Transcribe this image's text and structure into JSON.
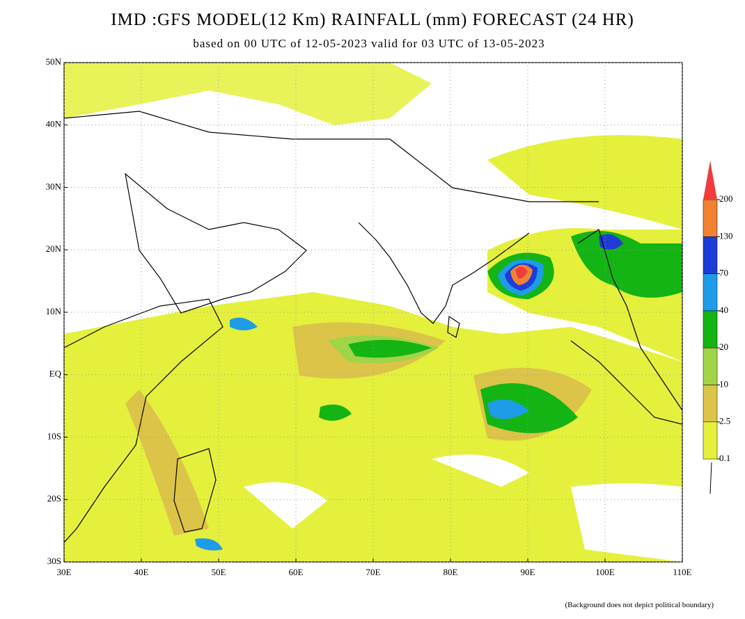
{
  "header": {
    "title": "IMD :GFS MODEL(12 Km) RAINFALL (mm) FORECAST (24 HR)",
    "subtitle": "based on 00 UTC of 12-05-2023 valid for 03 UTC of 13-05-2023"
  },
  "map": {
    "lonlim": [
      30,
      110
    ],
    "latlim": [
      -30,
      50
    ],
    "lon_ticks": [
      {
        "value": 30,
        "label": "30E"
      },
      {
        "value": 40,
        "label": "40E"
      },
      {
        "value": 50,
        "label": "50E"
      },
      {
        "value": 60,
        "label": "60E"
      },
      {
        "value": 70,
        "label": "70E"
      },
      {
        "value": 80,
        "label": "80E"
      },
      {
        "value": 90,
        "label": "90E"
      },
      {
        "value": 100,
        "label": "100E"
      },
      {
        "value": 110,
        "label": "110E"
      }
    ],
    "lat_ticks": [
      {
        "value": 50,
        "label": "50N"
      },
      {
        "value": 40,
        "label": "40N"
      },
      {
        "value": 30,
        "label": "30N"
      },
      {
        "value": 20,
        "label": "20N"
      },
      {
        "value": 10,
        "label": "10N"
      },
      {
        "value": 0,
        "label": "EQ"
      },
      {
        "value": -10,
        "label": "10S"
      },
      {
        "value": -20,
        "label": "20S"
      },
      {
        "value": -30,
        "label": "30S"
      }
    ]
  },
  "colorbar": {
    "levels": [
      0.1,
      2.5,
      10,
      20,
      40,
      70,
      130,
      200
    ],
    "colors": [
      "#e4f03c",
      "#dcc448",
      "#a2d448",
      "#14b414",
      "#1e9ce8",
      "#1e3cd8",
      "#f08232",
      "#f03c3c"
    ]
  },
  "footnote": "(Background does not depict political boundary)"
}
